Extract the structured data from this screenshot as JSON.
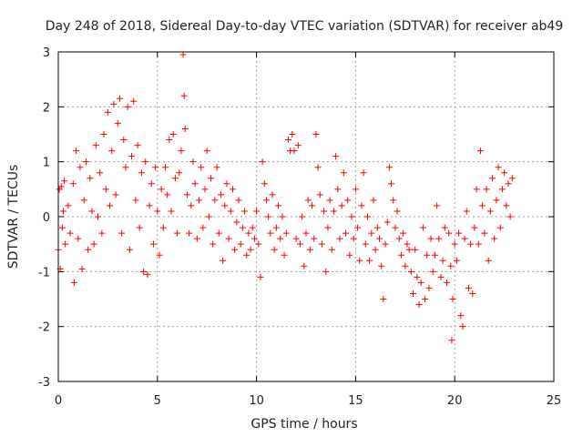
{
  "chart_data": {
    "type": "scatter",
    "title": "Day 248 of 2018, Sidereal Day-to-day VTEC variation (SDTVAR) for receiver ab49",
    "xlabel": "GPS time / hours",
    "ylabel": "SDTVAR / TECUs",
    "xlim": [
      0,
      25
    ],
    "ylim": [
      -3,
      3
    ],
    "xticks": [
      "0",
      "5",
      "10",
      "15",
      "20",
      "25"
    ],
    "yticks": [
      "-3",
      "-2",
      "-1",
      "0",
      "1",
      "2",
      "3"
    ],
    "grid": true,
    "marker": "+",
    "colors": {
      "series": "#ff0000",
      "axis": "#000000",
      "grid": "#a0a0a0"
    },
    "series": [
      {
        "name": "SDTVAR",
        "points": [
          [
            0.0,
            -0.6
          ],
          [
            0.05,
            0.5
          ],
          [
            0.1,
            -0.95
          ],
          [
            0.15,
            0.55
          ],
          [
            0.2,
            -0.2
          ],
          [
            0.25,
            0.1
          ],
          [
            0.3,
            0.65
          ],
          [
            0.35,
            -0.5
          ],
          [
            0.5,
            0.2
          ],
          [
            0.6,
            -0.3
          ],
          [
            0.75,
            0.6
          ],
          [
            0.8,
            -1.2
          ],
          [
            0.9,
            1.2
          ],
          [
            1.0,
            -0.4
          ],
          [
            1.1,
            0.9
          ],
          [
            1.2,
            -0.95
          ],
          [
            1.3,
            0.3
          ],
          [
            1.4,
            1.0
          ],
          [
            1.5,
            -0.6
          ],
          [
            1.6,
            0.7
          ],
          [
            1.7,
            0.1
          ],
          [
            1.8,
            -0.5
          ],
          [
            1.9,
            1.3
          ],
          [
            2.0,
            0.0
          ],
          [
            2.1,
            0.8
          ],
          [
            2.2,
            -0.3
          ],
          [
            2.3,
            1.5
          ],
          [
            2.4,
            0.5
          ],
          [
            2.5,
            1.9
          ],
          [
            2.6,
            0.2
          ],
          [
            2.7,
            1.2
          ],
          [
            2.8,
            2.05
          ],
          [
            2.9,
            0.4
          ],
          [
            3.0,
            1.7
          ],
          [
            3.1,
            2.15
          ],
          [
            3.2,
            -0.3
          ],
          [
            3.3,
            1.4
          ],
          [
            3.4,
            0.9
          ],
          [
            3.5,
            2.0
          ],
          [
            3.6,
            -0.6
          ],
          [
            3.7,
            1.1
          ],
          [
            3.8,
            2.1
          ],
          [
            3.9,
            0.3
          ],
          [
            4.0,
            1.3
          ],
          [
            4.1,
            -0.2
          ],
          [
            4.2,
            0.8
          ],
          [
            4.3,
            -1.0
          ],
          [
            4.4,
            1.0
          ],
          [
            4.5,
            -1.05
          ],
          [
            4.6,
            0.2
          ],
          [
            4.7,
            0.6
          ],
          [
            4.8,
            -0.5
          ],
          [
            4.9,
            0.9
          ],
          [
            5.0,
            0.1
          ],
          [
            5.1,
            -0.7
          ],
          [
            5.2,
            0.5
          ],
          [
            5.3,
            -0.2
          ],
          [
            5.4,
            0.9
          ],
          [
            5.5,
            0.4
          ],
          [
            5.6,
            1.4
          ],
          [
            5.7,
            0.1
          ],
          [
            5.8,
            1.5
          ],
          [
            5.9,
            0.7
          ],
          [
            6.0,
            -0.3
          ],
          [
            6.1,
            0.8
          ],
          [
            6.2,
            1.2
          ],
          [
            6.3,
            2.95
          ],
          [
            6.35,
            2.2
          ],
          [
            6.4,
            1.6
          ],
          [
            6.5,
            0.4
          ],
          [
            6.6,
            -0.3
          ],
          [
            6.7,
            0.2
          ],
          [
            6.8,
            1.0
          ],
          [
            6.9,
            0.6
          ],
          [
            7.0,
            -0.4
          ],
          [
            7.1,
            0.3
          ],
          [
            7.2,
            0.9
          ],
          [
            7.3,
            -0.2
          ],
          [
            7.4,
            0.5
          ],
          [
            7.5,
            1.2
          ],
          [
            7.6,
            0.0
          ],
          [
            7.7,
            0.7
          ],
          [
            7.8,
            -0.5
          ],
          [
            7.9,
            0.3
          ],
          [
            8.0,
            0.9
          ],
          [
            8.1,
            -0.3
          ],
          [
            8.2,
            0.4
          ],
          [
            8.3,
            -0.8
          ],
          [
            8.4,
            0.2
          ],
          [
            8.5,
            0.6
          ],
          [
            8.6,
            -0.4
          ],
          [
            8.7,
            0.1
          ],
          [
            8.8,
            0.5
          ],
          [
            8.9,
            -0.6
          ],
          [
            9.0,
            -0.1
          ],
          [
            9.1,
            0.3
          ],
          [
            9.2,
            -0.5
          ],
          [
            9.3,
            -0.2
          ],
          [
            9.4,
            0.1
          ],
          [
            9.5,
            -0.7
          ],
          [
            9.6,
            -0.3
          ],
          [
            9.7,
            -0.6
          ],
          [
            9.8,
            -0.2
          ],
          [
            9.9,
            -0.4
          ],
          [
            10.0,
            0.1
          ],
          [
            10.1,
            -0.5
          ],
          [
            10.2,
            -1.1
          ],
          [
            10.3,
            1.0
          ],
          [
            10.4,
            0.6
          ],
          [
            10.5,
            0.3
          ],
          [
            10.6,
            0.0
          ],
          [
            10.7,
            -0.3
          ],
          [
            10.8,
            0.4
          ],
          [
            10.9,
            -0.6
          ],
          [
            11.0,
            -0.2
          ],
          [
            11.1,
            0.2
          ],
          [
            11.2,
            -0.4
          ],
          [
            11.3,
            0.0
          ],
          [
            11.4,
            -0.7
          ],
          [
            11.5,
            -0.3
          ],
          [
            11.6,
            1.4
          ],
          [
            11.7,
            1.2
          ],
          [
            11.8,
            1.5
          ],
          [
            11.9,
            1.2
          ],
          [
            12.0,
            -0.4
          ],
          [
            12.1,
            1.3
          ],
          [
            12.2,
            -0.5
          ],
          [
            12.3,
            0.0
          ],
          [
            12.4,
            -0.9
          ],
          [
            12.5,
            -0.3
          ],
          [
            12.6,
            0.3
          ],
          [
            12.7,
            -0.6
          ],
          [
            12.8,
            0.2
          ],
          [
            12.9,
            -0.4
          ],
          [
            13.0,
            1.5
          ],
          [
            13.1,
            0.9
          ],
          [
            13.2,
            0.4
          ],
          [
            13.3,
            -0.5
          ],
          [
            13.4,
            0.1
          ],
          [
            13.5,
            -1.0
          ],
          [
            13.6,
            -0.2
          ],
          [
            13.7,
            0.3
          ],
          [
            13.8,
            -0.6
          ],
          [
            13.9,
            0.1
          ],
          [
            14.0,
            1.1
          ],
          [
            14.1,
            0.5
          ],
          [
            14.2,
            -0.4
          ],
          [
            14.3,
            0.2
          ],
          [
            14.4,
            0.8
          ],
          [
            14.5,
            -0.3
          ],
          [
            14.6,
            0.3
          ],
          [
            14.7,
            -0.7
          ],
          [
            14.8,
            0.0
          ],
          [
            14.9,
            -0.4
          ],
          [
            15.0,
            0.5
          ],
          [
            15.1,
            -0.2
          ],
          [
            15.2,
            -0.8
          ],
          [
            15.3,
            0.2
          ],
          [
            15.4,
            0.8
          ],
          [
            15.5,
            -0.5
          ],
          [
            15.6,
            0.0
          ],
          [
            15.7,
            -0.8
          ],
          [
            15.8,
            -0.3
          ],
          [
            15.9,
            0.3
          ],
          [
            16.0,
            -0.6
          ],
          [
            16.1,
            -0.2
          ],
          [
            16.2,
            -0.4
          ],
          [
            16.3,
            -0.9
          ],
          [
            16.4,
            -1.5
          ],
          [
            16.5,
            -0.5
          ],
          [
            16.6,
            -0.1
          ],
          [
            16.7,
            0.9
          ],
          [
            16.8,
            0.6
          ],
          [
            16.9,
            0.3
          ],
          [
            17.0,
            -0.2
          ],
          [
            17.1,
            0.1
          ],
          [
            17.2,
            -0.4
          ],
          [
            17.3,
            -0.7
          ],
          [
            17.4,
            -0.3
          ],
          [
            17.5,
            -0.9
          ],
          [
            17.6,
            -0.5
          ],
          [
            17.7,
            -0.6
          ],
          [
            17.8,
            -1.0
          ],
          [
            17.9,
            -1.4
          ],
          [
            18.0,
            -0.6
          ],
          [
            18.1,
            -1.1
          ],
          [
            18.2,
            -1.6
          ],
          [
            18.3,
            -1.2
          ],
          [
            18.4,
            -0.2
          ],
          [
            18.5,
            -1.5
          ],
          [
            18.6,
            -0.7
          ],
          [
            18.7,
            -1.3
          ],
          [
            18.8,
            -0.4
          ],
          [
            18.9,
            -1.0
          ],
          [
            19.0,
            -0.7
          ],
          [
            19.1,
            0.2
          ],
          [
            19.2,
            -0.4
          ],
          [
            19.3,
            -1.1
          ],
          [
            19.4,
            -0.8
          ],
          [
            19.5,
            -0.2
          ],
          [
            19.6,
            -1.2
          ],
          [
            19.7,
            -0.3
          ],
          [
            19.8,
            -0.9
          ],
          [
            19.85,
            -2.25
          ],
          [
            19.9,
            -1.5
          ],
          [
            20.0,
            -0.5
          ],
          [
            20.1,
            -0.8
          ],
          [
            20.2,
            -0.3
          ],
          [
            20.3,
            -1.8
          ],
          [
            20.4,
            -2.0
          ],
          [
            20.5,
            -0.4
          ],
          [
            20.6,
            0.1
          ],
          [
            20.7,
            -1.3
          ],
          [
            20.8,
            -0.5
          ],
          [
            20.9,
            -1.4
          ],
          [
            21.0,
            -0.2
          ],
          [
            21.1,
            0.5
          ],
          [
            21.2,
            -0.5
          ],
          [
            21.3,
            1.2
          ],
          [
            21.4,
            0.2
          ],
          [
            21.5,
            -0.3
          ],
          [
            21.6,
            0.5
          ],
          [
            21.7,
            -0.8
          ],
          [
            21.8,
            0.1
          ],
          [
            21.9,
            0.7
          ],
          [
            22.0,
            -0.4
          ],
          [
            22.1,
            0.3
          ],
          [
            22.2,
            0.9
          ],
          [
            22.3,
            -0.2
          ],
          [
            22.4,
            0.5
          ],
          [
            22.5,
            0.8
          ],
          [
            22.6,
            0.2
          ],
          [
            22.7,
            0.6
          ],
          [
            22.8,
            0.0
          ],
          [
            22.9,
            0.7
          ]
        ]
      }
    ]
  }
}
